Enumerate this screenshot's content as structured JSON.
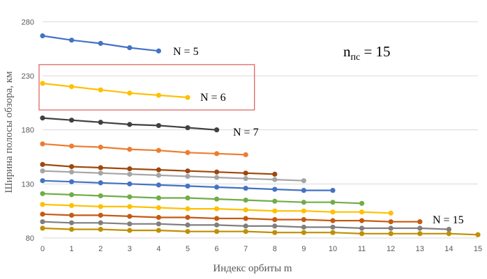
{
  "chart_data": {
    "type": "line",
    "title": "",
    "xlabel": "Индекс орбиты m",
    "ylabel": "Ширина полосы обзора, км",
    "xlim": [
      0,
      15
    ],
    "ylim": [
      80,
      295
    ],
    "x_ticks": [
      "0",
      "1",
      "2",
      "3",
      "4",
      "5",
      "6",
      "7",
      "8",
      "9",
      "10",
      "11",
      "12",
      "13",
      "14",
      "15"
    ],
    "y_ticks": [
      {
        "value": 80,
        "label": "80"
      },
      {
        "value": 130,
        "label": "130"
      },
      {
        "value": 180,
        "label": "180"
      },
      {
        "value": 230,
        "label": "230"
      },
      {
        "value": 280,
        "label": "280"
      }
    ],
    "grid": "horizontal",
    "series": [
      {
        "color": "#4472c4",
        "values": [
          267,
          263,
          260,
          256,
          253
        ]
      },
      {
        "color": "#ffc000",
        "values": [
          223,
          220,
          217,
          214,
          212,
          210
        ]
      },
      {
        "color": "#404040",
        "values": [
          191,
          189,
          187,
          185,
          184,
          182,
          180
        ]
      },
      {
        "color": "#ed7d31",
        "values": [
          167,
          165,
          164,
          162,
          161,
          159,
          158,
          157
        ]
      },
      {
        "color": "#9e480e",
        "values": [
          148,
          146,
          145,
          144,
          143,
          142,
          141,
          140,
          139
        ]
      },
      {
        "color": "#a5a5a5",
        "values": [
          142,
          141,
          140,
          139,
          138,
          137,
          136,
          135,
          134,
          133
        ]
      },
      {
        "color": "#4472c4",
        "values": [
          133,
          132,
          131,
          130,
          129,
          128,
          127,
          126,
          125,
          124,
          124
        ]
      },
      {
        "color": "#70ad47",
        "values": [
          121,
          120,
          119,
          118,
          117,
          117,
          116,
          115,
          114,
          113,
          113,
          112
        ]
      },
      {
        "color": "#ffc000",
        "values": [
          111,
          110,
          109,
          109,
          108,
          107,
          107,
          106,
          105,
          105,
          104,
          104,
          103
        ]
      },
      {
        "color": "#c55a11",
        "values": [
          102,
          101,
          101,
          100,
          99,
          99,
          98,
          98,
          97,
          97,
          96,
          96,
          95,
          95
        ]
      },
      {
        "color": "#7f7f7f",
        "values": [
          95,
          94,
          94,
          93,
          93,
          92,
          92,
          91,
          91,
          90,
          90,
          89,
          89,
          89,
          88
        ]
      },
      {
        "color": "#bf9000",
        "values": [
          89,
          88,
          88,
          87,
          87,
          86,
          86,
          86,
          85,
          85,
          85,
          84,
          84,
          84,
          84,
          83
        ]
      }
    ],
    "annotations": [
      {
        "text": "N = 5"
      },
      {
        "text": "N = 6"
      },
      {
        "text": "N = 7"
      },
      {
        "text": "N = 15"
      }
    ],
    "n_label": {
      "main": "n",
      "sub": "пс",
      "rest": " = 15"
    },
    "highlight": {
      "series_index": 1,
      "color": "#e06666"
    }
  }
}
